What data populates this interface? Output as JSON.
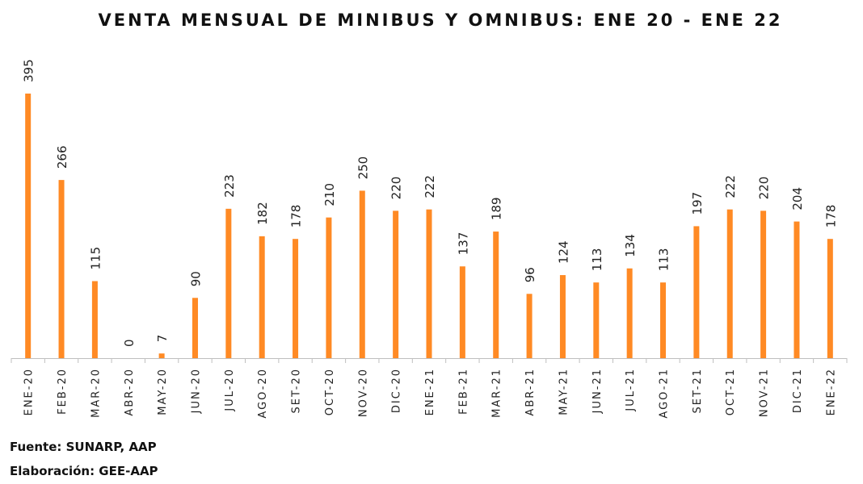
{
  "chart_data": {
    "type": "bar",
    "title": "VENTA MENSUAL DE MINIBUS Y OMNIBUS: ENE 20 - ENE 22",
    "xlabel": "",
    "ylabel": "",
    "ylim": [
      0,
      400
    ],
    "grid": false,
    "legend": "none",
    "bar_color": "#FF8A24",
    "categories": [
      "ENE-20",
      "FEB-20",
      "MAR-20",
      "ABR-20",
      "MAY-20",
      "JUN-20",
      "JUL-20",
      "AGO-20",
      "SET-20",
      "OCT-20",
      "NOV-20",
      "DIC-20",
      "ENE-21",
      "FEB-21",
      "MAR-21",
      "ABR-21",
      "MAY-21",
      "JUN-21",
      "JUL-21",
      "AGO-21",
      "SET-21",
      "OCT-21",
      "NOV-21",
      "DIC-21",
      "ENE-22"
    ],
    "values": [
      395,
      266,
      115,
      0,
      7,
      90,
      223,
      182,
      178,
      210,
      250,
      220,
      222,
      137,
      189,
      96,
      124,
      113,
      134,
      113,
      197,
      222,
      220,
      204,
      178
    ]
  },
  "footer": {
    "source": "Fuente: SUNARP, AAP",
    "credit": "Elaboración: GEE-AAP"
  }
}
